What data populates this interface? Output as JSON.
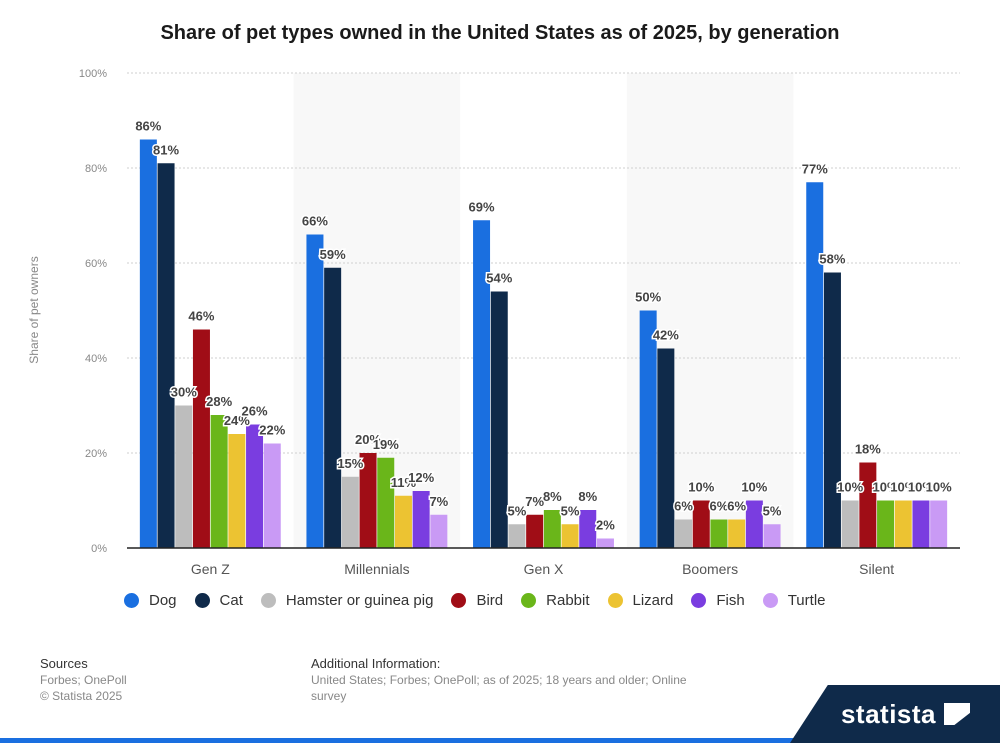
{
  "chart_data": {
    "type": "bar",
    "title": "Share of pet types owned in the United States as of 2025, by generation",
    "ylabel": "Share of pet owners",
    "xlabel": "",
    "ylim": [
      0,
      100
    ],
    "yticks": [
      0,
      20,
      40,
      60,
      80,
      100
    ],
    "ytick_labels": [
      "0%",
      "20%",
      "40%",
      "60%",
      "80%",
      "100%"
    ],
    "grid": true,
    "legend_position": "bottom",
    "categories": [
      "Gen Z",
      "Millennials",
      "Gen X",
      "Boomers",
      "Silent"
    ],
    "series": [
      {
        "name": "Dog",
        "color": "#1a6fe0",
        "values": [
          86,
          66,
          69,
          50,
          77
        ]
      },
      {
        "name": "Cat",
        "color": "#0f2a4a",
        "values": [
          81,
          59,
          54,
          42,
          58
        ]
      },
      {
        "name": "Hamster or guinea pig",
        "color": "#bdbdbd",
        "values": [
          30,
          15,
          5,
          6,
          10
        ]
      },
      {
        "name": "Bird",
        "color": "#a00d16",
        "values": [
          46,
          20,
          7,
          10,
          18
        ]
      },
      {
        "name": "Rabbit",
        "color": "#6ab61a",
        "values": [
          28,
          19,
          8,
          6,
          10
        ]
      },
      {
        "name": "Lizard",
        "color": "#ecc332",
        "values": [
          24,
          11,
          5,
          6,
          10
        ]
      },
      {
        "name": "Fish",
        "color": "#7a3de0",
        "values": [
          26,
          12,
          8,
          10,
          10
        ]
      },
      {
        "name": "Turtle",
        "color": "#c99af5",
        "values": [
          22,
          7,
          2,
          5,
          10
        ]
      }
    ],
    "value_suffix": "%"
  },
  "footer": {
    "sources_header": "Sources",
    "sources_line1": "Forbes; OnePoll",
    "sources_line2": "© Statista 2025",
    "additional_header": "Additional Information:",
    "additional_text": "United States; Forbes; OnePoll; as of 2025; 18 years and older; Online survey"
  },
  "brand": {
    "name": "statista"
  }
}
